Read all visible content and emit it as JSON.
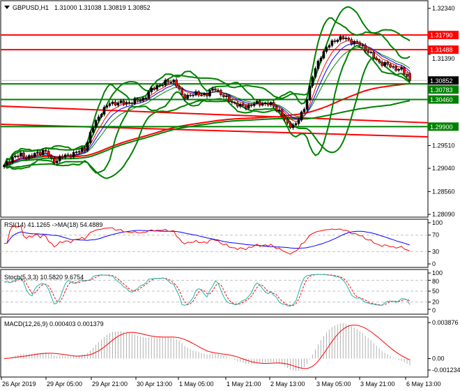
{
  "header": {
    "symbol": "GBPUSD,H1",
    "ohlc": "1.31000 1.31038 1.30819 1.30852"
  },
  "chart_data": [
    {
      "type": "candlestick",
      "title": "GBPUSD,H1",
      "current_ohlc": {
        "open": 1.31,
        "high": 1.31038,
        "low": 1.30819,
        "close": 1.30852
      },
      "ylim": [
        1.2809,
        1.3234
      ],
      "y_ticks": [
        "1.32340",
        "1.31390",
        "1.29510",
        "1.29040",
        "1.28560",
        "1.28090"
      ],
      "x_ticks": [
        "26 Apr 2019",
        "29 Apr 05:00",
        "29 Apr 21:00",
        "30 Apr 13:00",
        "1 May 05:00",
        "1 May 21:00",
        "2 May 13:00",
        "3 May 05:00",
        "3 May 21:00",
        "6 May 13:00"
      ],
      "closes": [
        1.29084,
        1.29271,
        1.29314,
        1.29271,
        1.29343,
        1.29415,
        1.2917,
        1.29271,
        1.29314,
        1.29372,
        1.29459,
        1.2992,
        1.30208,
        1.30381,
        1.30395,
        1.30381,
        1.30424,
        1.30453,
        1.3064,
        1.30755,
        1.30813,
        1.30856,
        1.30496,
        1.30568,
        1.30568,
        1.30568,
        1.30698,
        1.30525,
        1.30424,
        1.30323,
        1.30323,
        1.30381,
        1.30381,
        1.30352,
        1.30208,
        1.2992,
        1.29948,
        1.3028,
        1.30928,
        1.3136,
        1.31576,
        1.3172,
        1.3172,
        1.31648,
        1.31576,
        1.31432,
        1.31245,
        1.31187,
        1.31115,
        1.31072,
        1.30852
      ],
      "horizontal_levels": [
        {
          "price": 1.3179,
          "label": "1.31790",
          "color": "#ff0000"
        },
        {
          "price": 1.31488,
          "label": "1.31488",
          "color": "#ff0000"
        },
        {
          "price": 1.30783,
          "label": "1.30783",
          "color": "#008000"
        },
        {
          "price": 1.3046,
          "label": "1.30460",
          "color": "#008000"
        },
        {
          "price": 1.299,
          "label": "1.29900",
          "color": "#008000"
        }
      ],
      "current_price": {
        "price": 1.30852,
        "label": "1.30852",
        "color": "#000000"
      },
      "trend_lines": [
        {
          "color": "#ff0000",
          "from": 1.30323,
          "to": 1.2998
        },
        {
          "color": "#ff0000",
          "from": 1.29948,
          "to": 1.29689
        }
      ],
      "colors": {
        "bull": "#000000",
        "bear": "#ff0000",
        "bands": "#008000",
        "ma_fast": "#ff0000",
        "ma_mid": "#0000ff",
        "ma_slow": "#008000"
      }
    },
    {
      "type": "line",
      "label": "RSI(14) 41.1265  ->MA(18) 54.4889",
      "ylim": [
        0,
        100
      ],
      "y_ticks": [
        "100",
        "70",
        "30",
        "0"
      ],
      "levels": [
        70,
        30
      ],
      "series_colors": [
        "#ff0000",
        "#0000ff"
      ]
    },
    {
      "type": "line",
      "label": "Stoch(5,3,3) 10.5820 9.6754",
      "ylim": [
        0,
        100
      ],
      "y_ticks": [
        "100",
        "80",
        "50",
        "20",
        "0"
      ],
      "levels": [
        80,
        50,
        20
      ],
      "series_colors": [
        "#20b2aa",
        "#ff0000"
      ]
    },
    {
      "type": "bar",
      "label": "MACD(12,26,9) 0.000403 0.001379",
      "ylim": [
        -0.001234,
        0.003876
      ],
      "y_ticks": [
        "0.003876",
        "0.00",
        "-0.001234"
      ],
      "series_colors": [
        "#c0c0c0",
        "#ff0000"
      ]
    }
  ]
}
